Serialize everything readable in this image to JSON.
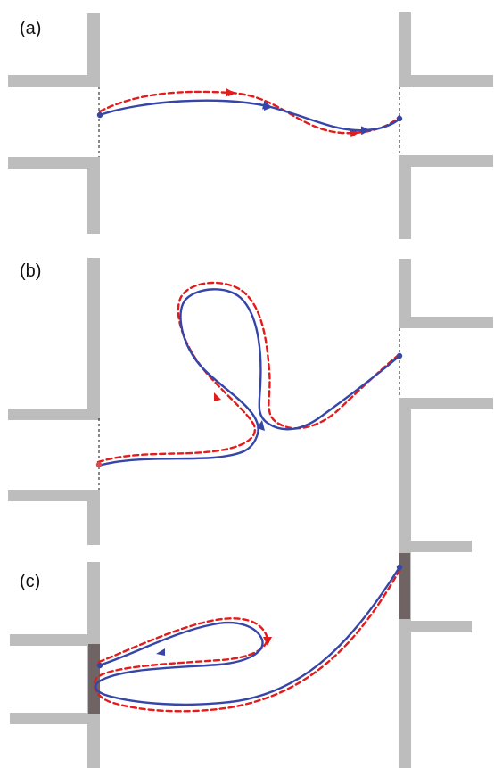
{
  "panels": [
    {
      "id": "a",
      "label": "(a)"
    },
    {
      "id": "b",
      "label": "(b)"
    },
    {
      "id": "c",
      "label": "(c)"
    }
  ],
  "colors": {
    "wall": "#bdbdbd",
    "contact": "#6f6363",
    "blue_path": "#3546a8",
    "red_dashed_path": "#e31b1b",
    "door_line": "#111111"
  }
}
